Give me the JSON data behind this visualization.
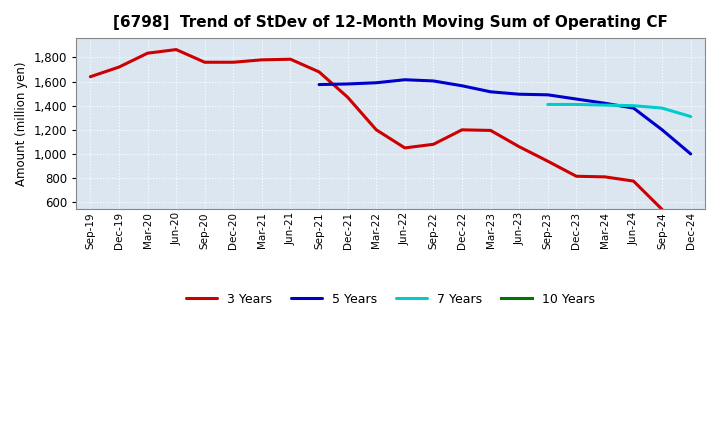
{
  "title": "[6798]  Trend of StDev of 12-Month Moving Sum of Operating CF",
  "ylabel": "Amount (million yen)",
  "background_color": "#ffffff",
  "plot_bg_color": "#dce6f0",
  "grid_color": "#ffffff",
  "title_fontsize": 11,
  "x_labels": [
    "Sep-19",
    "Dec-19",
    "Mar-20",
    "Jun-20",
    "Sep-20",
    "Dec-20",
    "Mar-21",
    "Jun-21",
    "Sep-21",
    "Dec-21",
    "Mar-22",
    "Jun-22",
    "Sep-22",
    "Dec-22",
    "Mar-23",
    "Jun-23",
    "Sep-23",
    "Dec-23",
    "Mar-24",
    "Jun-24",
    "Sep-24",
    "Dec-24"
  ],
  "series": [
    {
      "label": "3 Years",
      "color": "#cc0000",
      "linewidth": 2.2,
      "data": [
        [
          0,
          1640
        ],
        [
          1,
          1720
        ],
        [
          2,
          1835
        ],
        [
          3,
          1865
        ],
        [
          4,
          1760
        ],
        [
          5,
          1760
        ],
        [
          6,
          1780
        ],
        [
          7,
          1785
        ],
        [
          8,
          1680
        ],
        [
          9,
          1470
        ],
        [
          10,
          1200
        ],
        [
          11,
          1050
        ],
        [
          12,
          1080
        ],
        [
          13,
          1200
        ],
        [
          14,
          1195
        ],
        [
          15,
          1060
        ],
        [
          16,
          940
        ],
        [
          17,
          815
        ],
        [
          18,
          810
        ],
        [
          19,
          775
        ],
        [
          20,
          540
        ]
      ]
    },
    {
      "label": "5 Years",
      "color": "#0000cc",
      "linewidth": 2.2,
      "data": [
        [
          8,
          1575
        ],
        [
          9,
          1580
        ],
        [
          10,
          1590
        ],
        [
          11,
          1615
        ],
        [
          12,
          1605
        ],
        [
          13,
          1565
        ],
        [
          14,
          1515
        ],
        [
          15,
          1495
        ],
        [
          16,
          1490
        ],
        [
          17,
          1455
        ],
        [
          18,
          1420
        ],
        [
          19,
          1380
        ],
        [
          20,
          1200
        ],
        [
          21,
          1000
        ]
      ]
    },
    {
      "label": "7 Years",
      "color": "#00cccc",
      "linewidth": 2.2,
      "data": [
        [
          16,
          1410
        ],
        [
          17,
          1410
        ],
        [
          18,
          1405
        ],
        [
          19,
          1400
        ],
        [
          20,
          1380
        ],
        [
          21,
          1310
        ]
      ]
    },
    {
      "label": "10 Years",
      "color": "#007700",
      "linewidth": 2.2,
      "data": []
    }
  ],
  "ylim": [
    540,
    1960
  ],
  "yticks": [
    600,
    800,
    1000,
    1200,
    1400,
    1600,
    1800
  ],
  "legend_ncol": 4
}
